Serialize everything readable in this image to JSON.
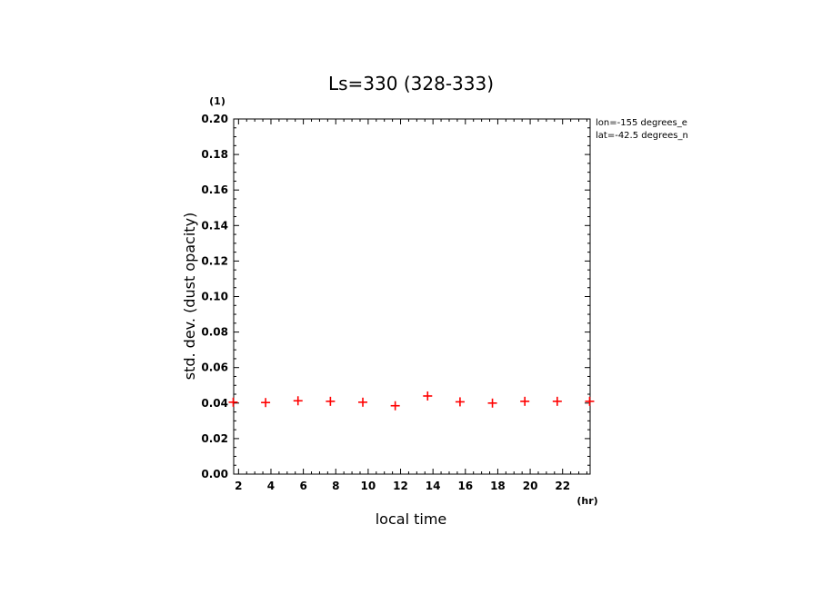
{
  "chart_data": {
    "type": "scatter",
    "title": "Ls=330 (328-333)",
    "xlabel": "local time",
    "xunit": "(hr)",
    "ylabel": "std. dev. (dust opacity)",
    "yunit": "(1)",
    "xlim": [
      1.7,
      23.7
    ],
    "ylim": [
      0,
      0.2
    ],
    "xticks": [
      "2",
      "4",
      "6",
      "8",
      "10",
      "12",
      "14",
      "16",
      "18",
      "20",
      "22"
    ],
    "xtick_values": [
      2,
      4,
      6,
      8,
      10,
      12,
      14,
      16,
      18,
      20,
      22
    ],
    "yticks": [
      "0.00",
      "0.02",
      "0.04",
      "0.06",
      "0.08",
      "0.10",
      "0.12",
      "0.14",
      "0.16",
      "0.18",
      "0.20"
    ],
    "ytick_values": [
      0,
      0.02,
      0.04,
      0.06,
      0.08,
      0.1,
      0.12,
      0.14,
      0.16,
      0.18,
      0.2
    ],
    "annotations": [
      "lon=-155 degrees_e",
      "lat=-42.5 degrees_n"
    ],
    "marker": "+",
    "marker_color": "#ff0000",
    "series": [
      {
        "x": [
          1.67,
          3.67,
          5.67,
          7.67,
          9.67,
          11.67,
          13.67,
          15.67,
          17.67,
          19.67,
          21.67,
          23.67
        ],
        "values": [
          0.0405,
          0.0403,
          0.0413,
          0.041,
          0.0405,
          0.0385,
          0.044,
          0.0407,
          0.04,
          0.041,
          0.041,
          0.041
        ]
      }
    ]
  }
}
